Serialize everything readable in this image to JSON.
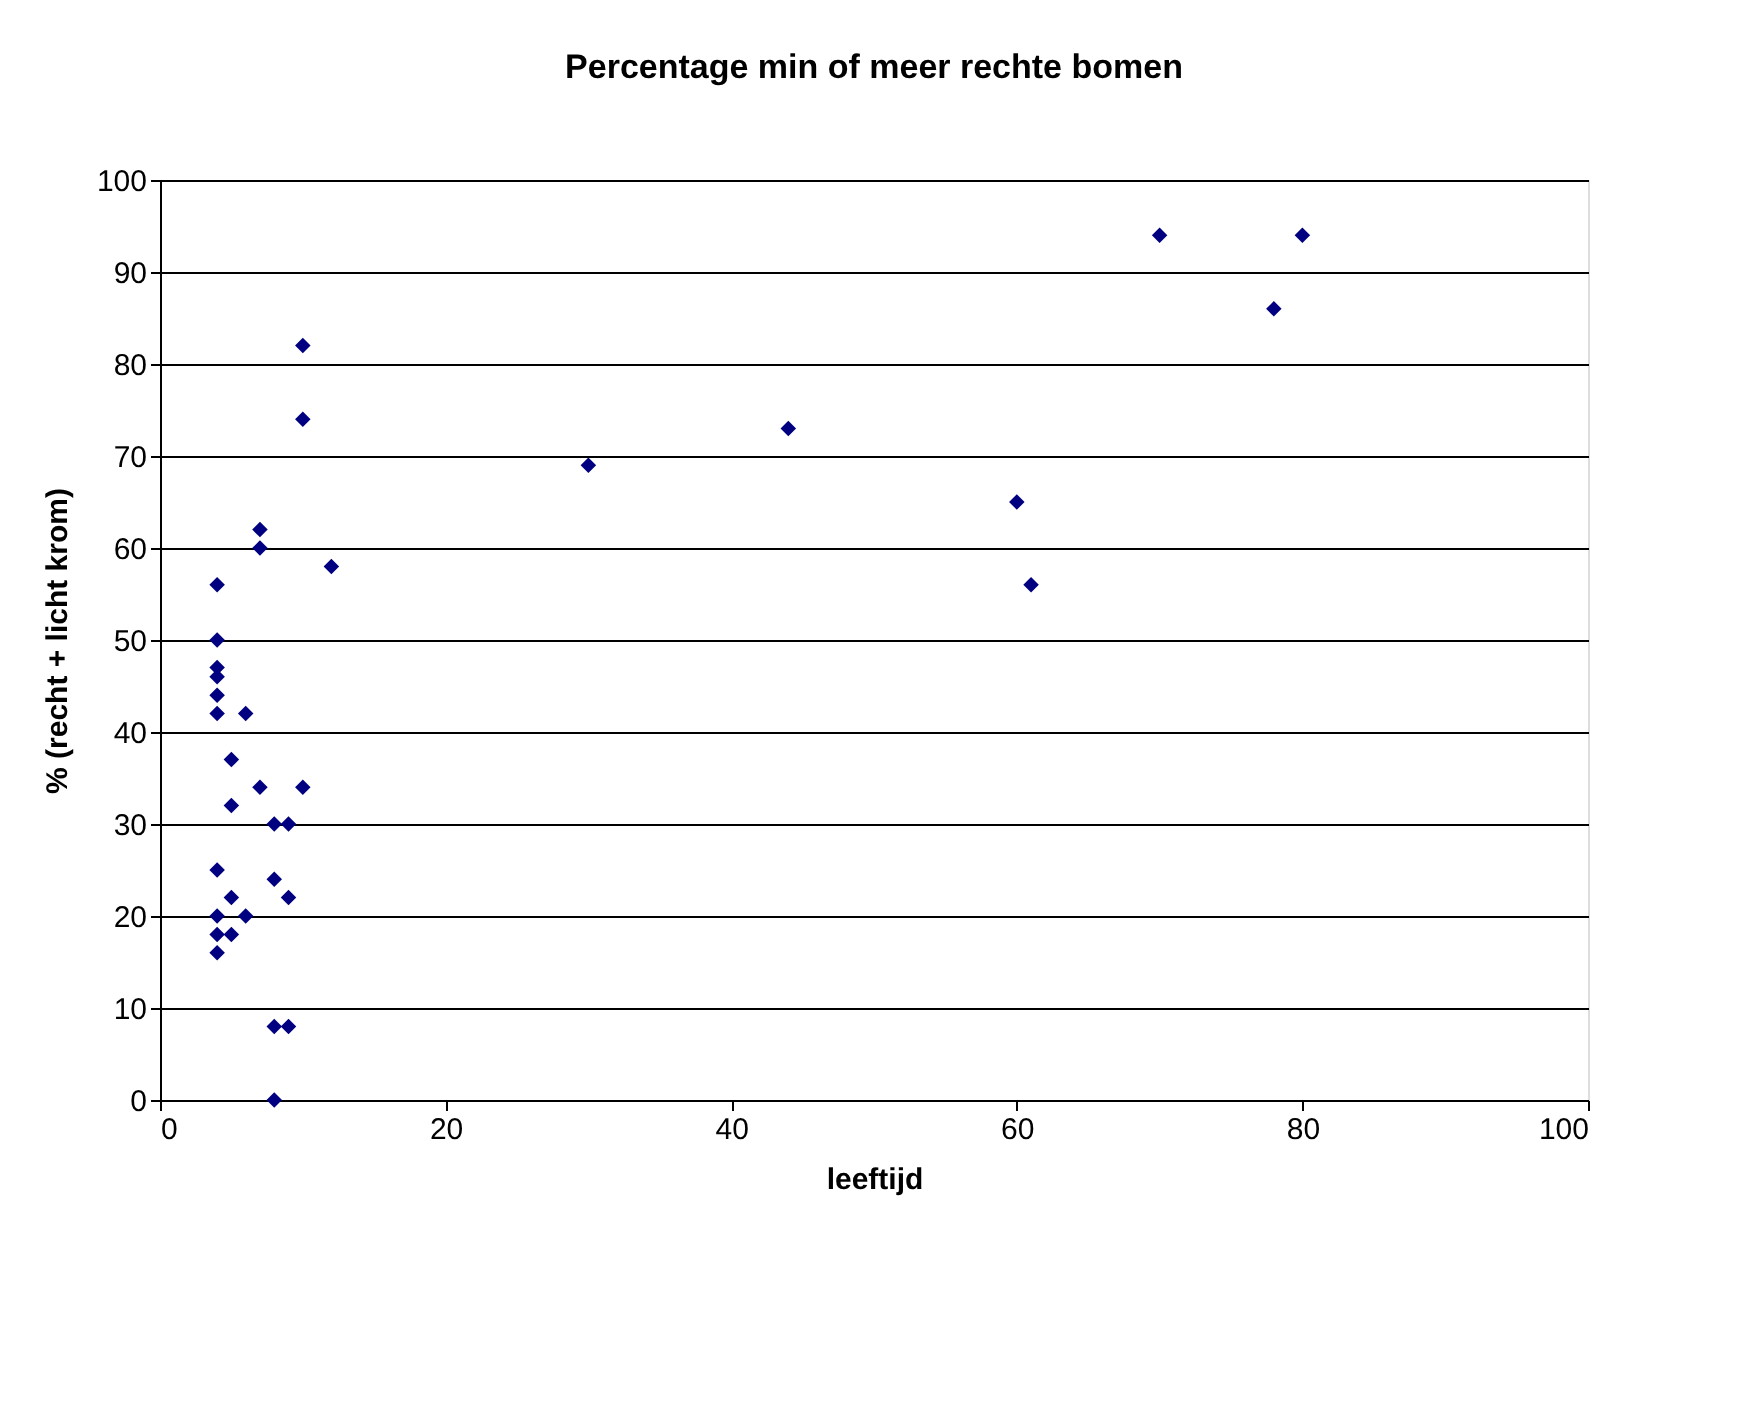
{
  "chart_data": {
    "type": "scatter",
    "title": "Percentage min of meer rechte bomen",
    "xlabel": "leeftijd",
    "ylabel": "% (recht + licht krom)",
    "x": [
      4,
      4,
      4,
      4,
      4,
      4,
      6,
      5,
      7,
      10,
      5,
      8,
      9,
      4,
      8,
      5,
      9,
      4,
      6,
      4,
      5,
      4,
      8,
      9,
      8,
      10,
      10,
      7,
      7,
      12,
      30,
      44,
      60,
      61,
      70,
      78,
      80
    ],
    "values": [
      56,
      50,
      47,
      46,
      44,
      42,
      42,
      37,
      34,
      34,
      32,
      30,
      30,
      25,
      24,
      22,
      22,
      20,
      20,
      18,
      18,
      16,
      8,
      8,
      0,
      82,
      74,
      62,
      60,
      58,
      69,
      73,
      65,
      56,
      94,
      86,
      94
    ],
    "color": "#000080",
    "marker": "diamond",
    "xlim": [
      0,
      100
    ],
    "ylim": [
      0,
      100
    ],
    "xticks": [
      0,
      20,
      40,
      60,
      80,
      100
    ],
    "yticks": [
      0,
      10,
      20,
      30,
      40,
      50,
      60,
      70,
      80,
      90,
      100
    ],
    "grid": "y"
  }
}
